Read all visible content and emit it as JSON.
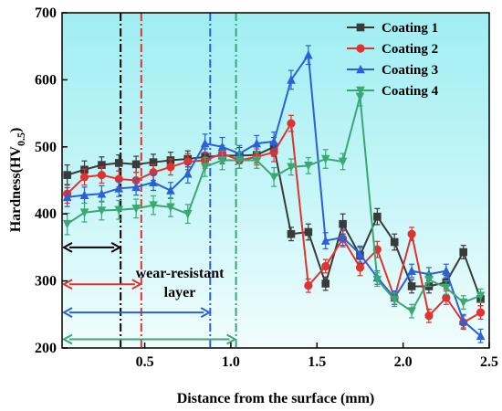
{
  "chart_data": {
    "type": "line",
    "xlabel": "Distance from the surface (mm)",
    "ylabel_main": "Hardness(HV",
    "ylabel_sub": "0.5",
    "ylabel_close": ")",
    "xlim": [
      0.02,
      2.5
    ],
    "ylim": [
      200,
      700
    ],
    "xticks": [
      0.5,
      1.0,
      1.5,
      2.0,
      2.5
    ],
    "xtick_labels": [
      "0.5",
      "1.0",
      "1.5",
      "2.0",
      "2.5"
    ],
    "yticks": [
      200,
      300,
      400,
      500,
      600,
      700
    ],
    "ytick_labels": [
      "200",
      "300",
      "400",
      "500",
      "600",
      "700"
    ],
    "x": [
      0.05,
      0.15,
      0.25,
      0.35,
      0.45,
      0.55,
      0.65,
      0.75,
      0.85,
      0.95,
      1.05,
      1.15,
      1.25,
      1.35,
      1.45,
      1.55,
      1.65,
      1.75,
      1.85,
      1.95,
      2.05,
      2.15,
      2.25,
      2.35,
      2.45
    ],
    "series": [
      {
        "name": "Coating 1",
        "color": "#3a3a3a",
        "marker": "square",
        "values": [
          458,
          466,
          473,
          476,
          474,
          477,
          480,
          482,
          485,
          487,
          487,
          488,
          500,
          370,
          373,
          296,
          385,
          338,
          396,
          358,
          292,
          292,
          298,
          343,
          273
        ],
        "errors": [
          15,
          13,
          12,
          12,
          12,
          12,
          12,
          12,
          12,
          12,
          12,
          12,
          14,
          10,
          12,
          10,
          15,
          12,
          12,
          12,
          10,
          10,
          10,
          10,
          10
        ]
      },
      {
        "name": "Coating 2",
        "color": "#e0322e",
        "marker": "circle",
        "values": [
          430,
          455,
          458,
          452,
          450,
          462,
          470,
          478,
          480,
          490,
          480,
          485,
          492,
          535,
          293,
          322,
          363,
          320,
          347,
          275,
          370,
          248,
          275,
          238,
          253
        ],
        "errors": [
          14,
          12,
          12,
          12,
          12,
          12,
          12,
          12,
          12,
          12,
          12,
          12,
          14,
          12,
          10,
          10,
          12,
          12,
          12,
          10,
          10,
          10,
          10,
          10,
          10
        ]
      },
      {
        "name": "Coating 3",
        "color": "#2a60d8",
        "marker": "triangle-up",
        "values": [
          425,
          428,
          430,
          438,
          440,
          447,
          435,
          460,
          505,
          500,
          490,
          505,
          508,
          600,
          637,
          360,
          365,
          340,
          305,
          275,
          315,
          310,
          315,
          240,
          218
        ],
        "errors": [
          14,
          12,
          12,
          12,
          12,
          12,
          12,
          14,
          14,
          14,
          12,
          12,
          14,
          14,
          14,
          12,
          12,
          12,
          10,
          10,
          10,
          10,
          10,
          10,
          10
        ]
      },
      {
        "name": "Coating 4",
        "color": "#3aa872",
        "marker": "triangle-down",
        "values": [
          385,
          402,
          405,
          406,
          408,
          413,
          410,
          400,
          470,
          480,
          480,
          480,
          455,
          470,
          472,
          482,
          478,
          575,
          302,
          272,
          255,
          302,
          290,
          268,
          278
        ],
        "errors": [
          16,
          14,
          14,
          14,
          14,
          14,
          14,
          14,
          14,
          14,
          12,
          12,
          14,
          12,
          12,
          14,
          12,
          14,
          10,
          10,
          10,
          10,
          10,
          10,
          10
        ]
      }
    ],
    "vlines": [
      {
        "x": 0.36,
        "color": "#000000"
      },
      {
        "x": 0.48,
        "color": "#e0322e"
      },
      {
        "x": 0.88,
        "color": "#2a60d8"
      },
      {
        "x": 1.03,
        "color": "#3aa872"
      }
    ],
    "arrows": [
      {
        "x_end": 0.36,
        "y": 350,
        "color": "#000000"
      },
      {
        "x_end": 0.48,
        "y": 295,
        "color": "#e0322e"
      },
      {
        "x_end": 0.88,
        "y": 253,
        "color": "#2a60d8"
      },
      {
        "x_end": 1.03,
        "y": 213,
        "color": "#3aa872"
      }
    ],
    "annotation_line1": "wear-resistant",
    "annotation_line2": "layer",
    "background_color": "#bff3f6",
    "legend_position": "top-right"
  }
}
